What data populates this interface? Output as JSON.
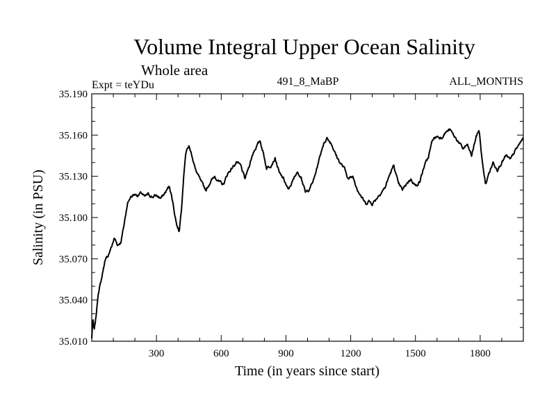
{
  "chart_data": {
    "type": "line",
    "title": "Volume Integral Upper Ocean Salinity",
    "subtitle": "Whole area",
    "left_label": "Expt = teYDu",
    "center_label": "491_8_MaBP",
    "right_label": "ALL_MONTHS",
    "xlabel": "Time (in years since start)",
    "ylabel": "Salinity (in PSU)",
    "xlim": [
      0,
      2000
    ],
    "ylim": [
      35.01,
      35.19
    ],
    "x_ticks": [
      300,
      600,
      900,
      1200,
      1500,
      1800
    ],
    "x_tick_labels": [
      "300",
      "600",
      "900",
      "1200",
      "1500",
      "1800"
    ],
    "y_ticks": [
      35.01,
      35.04,
      35.07,
      35.1,
      35.13,
      35.16,
      35.19
    ],
    "y_tick_labels": [
      "35.010",
      "35.040",
      "35.070",
      "35.100",
      "35.130",
      "35.160",
      "35.190"
    ],
    "line_color": "#000000",
    "series": [
      {
        "name": "Salinity",
        "x": [
          0,
          5,
          12,
          20,
          30,
          45,
          60,
          75,
          90,
          105,
          120,
          135,
          150,
          165,
          180,
          200,
          215,
          230,
          245,
          260,
          280,
          300,
          320,
          340,
          360,
          375,
          385,
          395,
          405,
          415,
          425,
          435,
          450,
          465,
          480,
          495,
          510,
          530,
          550,
          570,
          590,
          610,
          630,
          650,
          670,
          690,
          710,
          730,
          750,
          765,
          780,
          795,
          810,
          830,
          850,
          870,
          890,
          910,
          930,
          950,
          970,
          990,
          1010,
          1030,
          1050,
          1070,
          1090,
          1110,
          1130,
          1150,
          1170,
          1190,
          1210,
          1230,
          1250,
          1270,
          1285,
          1300,
          1320,
          1340,
          1360,
          1380,
          1400,
          1420,
          1440,
          1460,
          1480,
          1500,
          1520,
          1540,
          1560,
          1580,
          1600,
          1620,
          1640,
          1660,
          1680,
          1700,
          1720,
          1740,
          1760,
          1780,
          1795,
          1810,
          1825,
          1840,
          1860,
          1880,
          1900,
          1920,
          1940,
          1960,
          1980,
          2000
        ],
        "values": [
          35.012,
          35.026,
          35.018,
          35.028,
          35.045,
          35.055,
          35.068,
          35.072,
          35.078,
          35.085,
          35.08,
          35.082,
          35.095,
          35.11,
          35.115,
          35.117,
          35.116,
          35.118,
          35.115,
          35.117,
          35.115,
          35.116,
          35.114,
          35.118,
          35.123,
          35.112,
          35.102,
          35.094,
          35.09,
          35.105,
          35.128,
          35.147,
          35.152,
          35.145,
          35.135,
          35.13,
          35.125,
          35.12,
          35.126,
          35.13,
          35.126,
          35.124,
          35.132,
          35.136,
          35.14,
          35.138,
          35.128,
          35.138,
          35.148,
          35.152,
          35.156,
          35.147,
          35.136,
          35.138,
          35.143,
          35.132,
          35.128,
          35.12,
          35.126,
          35.133,
          35.13,
          35.118,
          35.121,
          35.128,
          35.14,
          35.152,
          35.158,
          35.154,
          35.146,
          35.14,
          35.136,
          35.128,
          35.13,
          35.121,
          35.115,
          35.11,
          35.112,
          35.11,
          35.114,
          35.118,
          35.122,
          35.131,
          35.138,
          35.125,
          35.12,
          35.125,
          35.128,
          35.123,
          35.126,
          35.137,
          35.144,
          35.157,
          35.159,
          35.158,
          35.162,
          35.164,
          35.159,
          35.155,
          35.15,
          35.153,
          35.145,
          35.158,
          35.164,
          35.14,
          35.124,
          35.132,
          35.14,
          35.135,
          35.14,
          35.145,
          35.142,
          35.148,
          35.153,
          35.158
        ]
      }
    ]
  }
}
